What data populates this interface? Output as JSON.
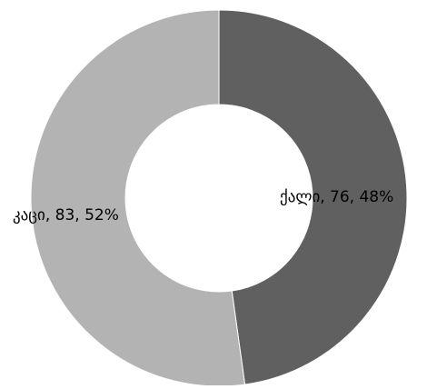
{
  "chart_data": {
    "type": "pie",
    "variant": "donut",
    "title": "",
    "legend": "none",
    "slices": [
      {
        "label": "ქალი",
        "value": 76,
        "percent": "48%",
        "color": "#606060"
      },
      {
        "label": "კაცი",
        "value": 83,
        "percent": "52%",
        "color": "#b3b3b3"
      }
    ],
    "data_labels": [
      "ქალი, 76, 48%",
      "კაცი, 83, 52%"
    ]
  }
}
